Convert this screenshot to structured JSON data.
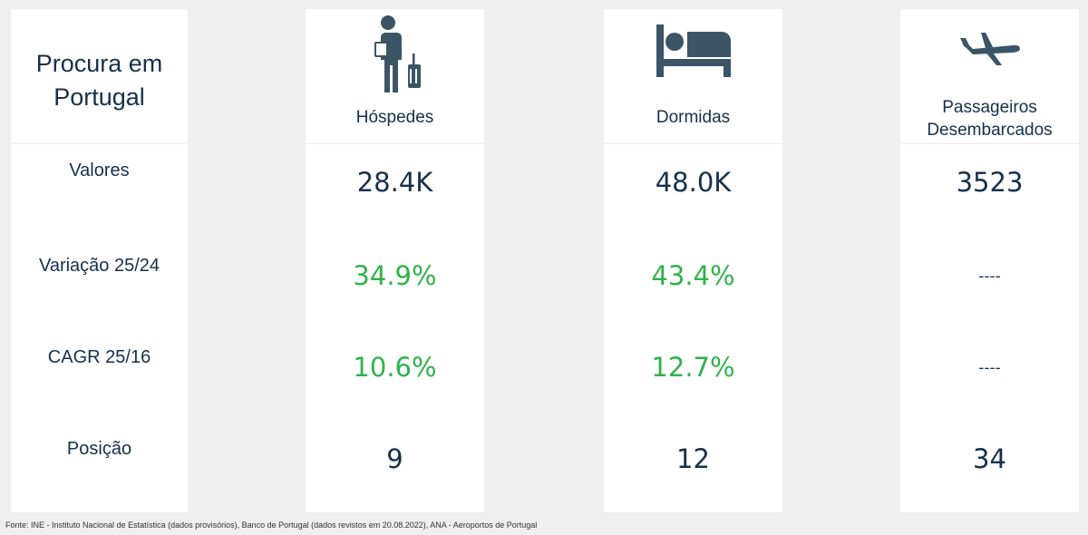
{
  "header": {
    "title": "Procura em Portugal"
  },
  "colors": {
    "text": "#16304d",
    "positive": "#2fb34a",
    "icon": "#3b5566"
  },
  "rows": [
    "Valores",
    "Variação 25/24",
    "CAGR 25/16",
    "Posição"
  ],
  "metrics": [
    {
      "label": "Hóspedes",
      "icon": "traveler-icon",
      "values": [
        "28.4K",
        "34.9%",
        "10.6%",
        "9"
      ]
    },
    {
      "label": "Dormidas",
      "icon": "bed-icon",
      "values": [
        "48.0K",
        "43.4%",
        "12.7%",
        "12"
      ]
    },
    {
      "label_line1": "Passageiros",
      "label_line2": "Desembarcados",
      "icon": "airplane-icon",
      "values": [
        "3523",
        "----",
        "----",
        "34"
      ]
    }
  ],
  "footer": {
    "source": "Fonte: INE - Instituto Nacional de Estatística (dados provisórios), Banco de Portugal (dados revistos em 20.08.2022), ANA - Aeroportos de Portugal"
  }
}
